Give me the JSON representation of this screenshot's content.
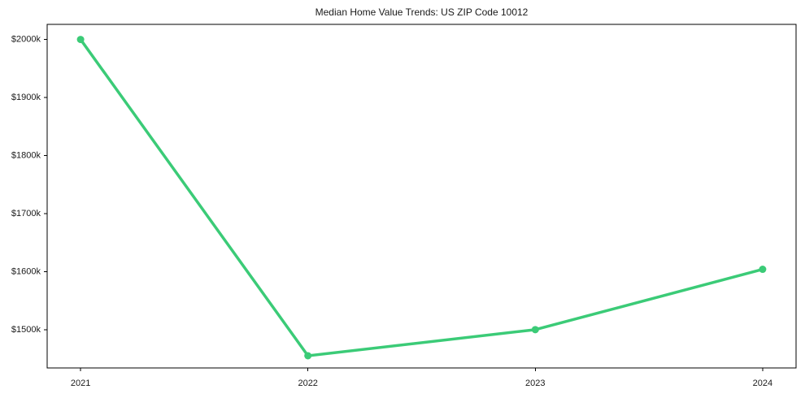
{
  "chart_data": {
    "type": "line",
    "title": "Median Home Value Trends: US ZIP Code 10012",
    "x": [
      2021,
      2022,
      2023,
      2024
    ],
    "x_tick_labels": [
      "2021",
      "2022",
      "2023",
      "2024"
    ],
    "series": [
      {
        "name": "median-home-value",
        "values_k_usd": [
          2000,
          1455,
          1500,
          1604
        ],
        "color": "#3bcb77",
        "marker": "circle",
        "line_width": 3.5,
        "marker_radius": 4.5
      }
    ],
    "y_ticks_k_usd": [
      1500,
      1600,
      1700,
      1800,
      1900,
      2000
    ],
    "y_tick_labels": [
      "$1500k",
      "$1600k",
      "$1700k",
      "$1800k",
      "$1900k",
      "$2000k"
    ],
    "xlabel": "",
    "ylabel": "",
    "xlim_years": [
      2020.853,
      2024.147
    ],
    "ylim_k_usd": [
      1434,
      2026
    ],
    "grid": false,
    "legend": "none",
    "axis_color": "#000000",
    "text_color": "#1a1a1a",
    "background_color": "#ffffff"
  }
}
